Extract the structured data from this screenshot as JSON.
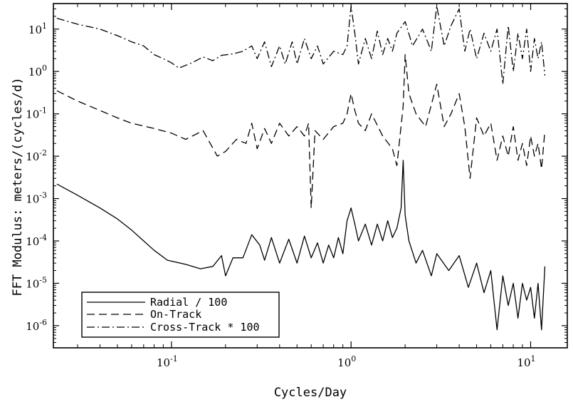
{
  "chart_data": {
    "type": "line",
    "title": "",
    "xlabel": "Cycles/Day",
    "ylabel": "FFT Modulus: meters/(cycles/d)",
    "x_scale": "log",
    "y_scale": "log",
    "xlim": [
      0.022,
      16
    ],
    "ylim": [
      3e-07,
      40
    ],
    "grid": false,
    "legend_position": "bottom-left",
    "x_ticks": [
      {
        "value": 0.1,
        "base": "10",
        "exp": "-1"
      },
      {
        "value": 1,
        "base": "10",
        "exp": "0"
      },
      {
        "value": 10,
        "base": "10",
        "exp": "1"
      }
    ],
    "y_ticks": [
      {
        "value": 10,
        "base": "10",
        "exp": "1"
      },
      {
        "value": 1,
        "base": "10",
        "exp": "0"
      },
      {
        "value": 0.1,
        "base": "10",
        "exp": "-1"
      },
      {
        "value": 0.01,
        "base": "10",
        "exp": "-2"
      },
      {
        "value": 0.001,
        "base": "10",
        "exp": "-3"
      },
      {
        "value": 0.0001,
        "base": "10",
        "exp": "-4"
      },
      {
        "value": 1e-05,
        "base": "10",
        "exp": "-5"
      },
      {
        "value": 1e-06,
        "base": "10",
        "exp": "-6"
      }
    ],
    "series": [
      {
        "name": "Radial / 100",
        "style": "solid",
        "color": "#000000",
        "points": [
          [
            0.023,
            0.0022
          ],
          [
            0.03,
            0.0012
          ],
          [
            0.04,
            0.0006
          ],
          [
            0.05,
            0.00033
          ],
          [
            0.06,
            0.00018
          ],
          [
            0.07,
            0.0001
          ],
          [
            0.08,
            6e-05
          ],
          [
            0.095,
            3.5e-05
          ],
          [
            0.12,
            2.8e-05
          ],
          [
            0.145,
            2.2e-05
          ],
          [
            0.17,
            2.5e-05
          ],
          [
            0.19,
            4.5e-05
          ],
          [
            0.2,
            1.5e-05
          ],
          [
            0.22,
            4e-05
          ],
          [
            0.25,
            4e-05
          ],
          [
            0.28,
            0.00014
          ],
          [
            0.31,
            8e-05
          ],
          [
            0.33,
            3.5e-05
          ],
          [
            0.36,
            0.00012
          ],
          [
            0.4,
            3e-05
          ],
          [
            0.45,
            0.00011
          ],
          [
            0.5,
            3e-05
          ],
          [
            0.55,
            0.00013
          ],
          [
            0.6,
            4e-05
          ],
          [
            0.65,
            9e-05
          ],
          [
            0.7,
            3e-05
          ],
          [
            0.75,
            8e-05
          ],
          [
            0.8,
            4e-05
          ],
          [
            0.85,
            0.00012
          ],
          [
            0.9,
            5e-05
          ],
          [
            0.95,
            0.0003
          ],
          [
            1.0,
            0.0006
          ],
          [
            1.05,
            0.00025
          ],
          [
            1.1,
            0.0001
          ],
          [
            1.2,
            0.00025
          ],
          [
            1.3,
            8e-05
          ],
          [
            1.4,
            0.00025
          ],
          [
            1.5,
            0.0001
          ],
          [
            1.6,
            0.0003
          ],
          [
            1.7,
            0.00012
          ],
          [
            1.8,
            0.0002
          ],
          [
            1.9,
            0.0006
          ],
          [
            1.95,
            0.008
          ],
          [
            2.0,
            0.0004
          ],
          [
            2.1,
            0.0001
          ],
          [
            2.3,
            3e-05
          ],
          [
            2.5,
            6e-05
          ],
          [
            2.8,
            1.5e-05
          ],
          [
            3.0,
            5e-05
          ],
          [
            3.5,
            2e-05
          ],
          [
            4.0,
            4.5e-05
          ],
          [
            4.5,
            8e-06
          ],
          [
            5.0,
            3e-05
          ],
          [
            5.5,
            6e-06
          ],
          [
            6.0,
            2e-05
          ],
          [
            6.5,
            8e-07
          ],
          [
            7.0,
            1.5e-05
          ],
          [
            7.5,
            3e-06
          ],
          [
            8.0,
            1e-05
          ],
          [
            8.5,
            1.5e-06
          ],
          [
            9.0,
            1e-05
          ],
          [
            9.5,
            4e-06
          ],
          [
            10.0,
            8e-06
          ],
          [
            10.5,
            1.5e-06
          ],
          [
            11.0,
            1e-05
          ],
          [
            11.5,
            8e-07
          ],
          [
            12.0,
            2.5e-05
          ]
        ]
      },
      {
        "name": "On-Track",
        "style": "dashed",
        "color": "#000000",
        "points": [
          [
            0.023,
            0.35
          ],
          [
            0.03,
            0.2
          ],
          [
            0.04,
            0.12
          ],
          [
            0.05,
            0.08
          ],
          [
            0.06,
            0.06
          ],
          [
            0.08,
            0.045
          ],
          [
            0.1,
            0.035
          ],
          [
            0.12,
            0.025
          ],
          [
            0.15,
            0.04
          ],
          [
            0.18,
            0.01
          ],
          [
            0.2,
            0.013
          ],
          [
            0.23,
            0.025
          ],
          [
            0.26,
            0.02
          ],
          [
            0.28,
            0.06
          ],
          [
            0.3,
            0.015
          ],
          [
            0.33,
            0.045
          ],
          [
            0.36,
            0.02
          ],
          [
            0.4,
            0.06
          ],
          [
            0.45,
            0.03
          ],
          [
            0.5,
            0.05
          ],
          [
            0.55,
            0.03
          ],
          [
            0.58,
            0.06
          ],
          [
            0.6,
            0.0006
          ],
          [
            0.63,
            0.04
          ],
          [
            0.7,
            0.025
          ],
          [
            0.8,
            0.05
          ],
          [
            0.9,
            0.06
          ],
          [
            0.95,
            0.1
          ],
          [
            1.0,
            0.3
          ],
          [
            1.05,
            0.12
          ],
          [
            1.1,
            0.06
          ],
          [
            1.2,
            0.04
          ],
          [
            1.3,
            0.1
          ],
          [
            1.5,
            0.03
          ],
          [
            1.7,
            0.015
          ],
          [
            1.8,
            0.006
          ],
          [
            1.95,
            0.15
          ],
          [
            2.0,
            2.5
          ],
          [
            2.1,
            0.3
          ],
          [
            2.3,
            0.1
          ],
          [
            2.6,
            0.05
          ],
          [
            3.0,
            0.5
          ],
          [
            3.3,
            0.05
          ],
          [
            3.6,
            0.1
          ],
          [
            4.0,
            0.3
          ],
          [
            4.3,
            0.05
          ],
          [
            4.6,
            0.003
          ],
          [
            5.0,
            0.08
          ],
          [
            5.5,
            0.03
          ],
          [
            6.0,
            0.06
          ],
          [
            6.5,
            0.008
          ],
          [
            7.0,
            0.03
          ],
          [
            7.5,
            0.01
          ],
          [
            8.0,
            0.05
          ],
          [
            8.5,
            0.008
          ],
          [
            9.0,
            0.02
          ],
          [
            9.5,
            0.006
          ],
          [
            10.0,
            0.03
          ],
          [
            10.5,
            0.01
          ],
          [
            11.0,
            0.02
          ],
          [
            11.5,
            0.005
          ],
          [
            12.0,
            0.04
          ]
        ]
      },
      {
        "name": "Cross-Track * 100",
        "style": "dashdot",
        "color": "#000000",
        "points": [
          [
            0.023,
            18
          ],
          [
            0.03,
            13
          ],
          [
            0.04,
            10
          ],
          [
            0.05,
            7
          ],
          [
            0.06,
            5
          ],
          [
            0.07,
            4
          ],
          [
            0.08,
            2.5
          ],
          [
            0.09,
            2
          ],
          [
            0.1,
            1.6
          ],
          [
            0.11,
            1.2
          ],
          [
            0.13,
            1.6
          ],
          [
            0.15,
            2.2
          ],
          [
            0.17,
            1.8
          ],
          [
            0.19,
            2.4
          ],
          [
            0.22,
            2.6
          ],
          [
            0.25,
            3
          ],
          [
            0.28,
            4
          ],
          [
            0.3,
            2
          ],
          [
            0.33,
            5
          ],
          [
            0.36,
            1.3
          ],
          [
            0.4,
            4
          ],
          [
            0.43,
            1.5
          ],
          [
            0.47,
            5
          ],
          [
            0.5,
            1.5
          ],
          [
            0.55,
            6
          ],
          [
            0.6,
            2
          ],
          [
            0.65,
            4
          ],
          [
            0.7,
            1.5
          ],
          [
            0.8,
            3
          ],
          [
            0.9,
            2.5
          ],
          [
            0.95,
            4
          ],
          [
            1.0,
            35
          ],
          [
            1.05,
            8
          ],
          [
            1.1,
            1.5
          ],
          [
            1.2,
            6
          ],
          [
            1.3,
            2
          ],
          [
            1.4,
            9
          ],
          [
            1.5,
            2.5
          ],
          [
            1.6,
            6
          ],
          [
            1.7,
            3
          ],
          [
            1.8,
            8
          ],
          [
            2.0,
            15
          ],
          [
            2.2,
            4
          ],
          [
            2.5,
            10
          ],
          [
            2.8,
            3
          ],
          [
            3.0,
            35
          ],
          [
            3.3,
            4
          ],
          [
            3.6,
            12
          ],
          [
            4.0,
            30
          ],
          [
            4.3,
            3
          ],
          [
            4.6,
            10
          ],
          [
            5.0,
            2
          ],
          [
            5.5,
            8
          ],
          [
            6.0,
            3
          ],
          [
            6.5,
            10
          ],
          [
            7.0,
            0.5
          ],
          [
            7.5,
            12
          ],
          [
            8.0,
            1
          ],
          [
            8.5,
            8
          ],
          [
            9.0,
            2
          ],
          [
            9.5,
            10
          ],
          [
            10.0,
            1
          ],
          [
            10.5,
            6
          ],
          [
            11.0,
            2
          ],
          [
            11.5,
            5
          ],
          [
            12.0,
            0.8
          ]
        ]
      }
    ]
  }
}
